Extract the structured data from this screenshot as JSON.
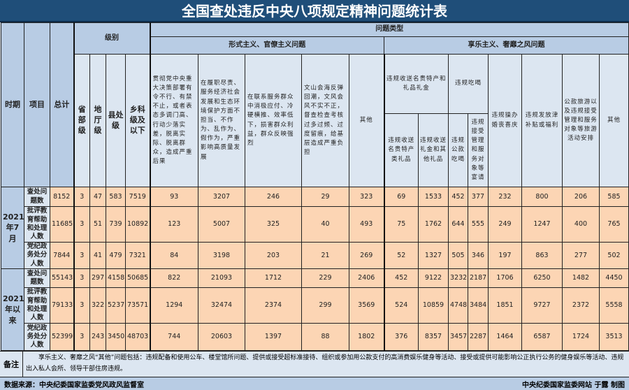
{
  "title": "全国查处违反中央八项规定精神问题统计表",
  "headers": {
    "period": "时期",
    "item": "项目",
    "total": "总计",
    "level": "级别",
    "levels": [
      "省部级",
      "地厅级",
      "县处级",
      "乡科级及以下"
    ],
    "problem_type": "问题类型",
    "formalism": "形式主义、官僚主义问题",
    "formalism_cols": [
      "贯彻党中央重大决策部署有令不行、有禁不止，或者表态多调门高、行动少落实差，脱离实际、脱离群众，造成严重后果",
      "在履职尽责、服务经济社会发展和生态环境保护方面不担当、不作为、乱作为、假作为，严重影响高质量发展",
      "在联系服务群众中消极应付、冷硬横推、效率低下，损害群众利益，群众反映强烈",
      "文山会海反弹回潮，文风会风不实不正，督查检查考核过多过频、过度留痕，给基层造成严重负担",
      "其他"
    ],
    "hedonism": "享乐主义、奢靡之风问题",
    "gift": "违规收送名贵特产和礼品礼金",
    "gift_sub": [
      "违规收送名贵特产类礼品",
      "违规收送礼金和其他礼品"
    ],
    "dining": "违规吃喝",
    "dining_sub": [
      "违规公款吃喝",
      "违规接受管理和服务对象等宴请"
    ],
    "hedonism_cols": [
      "违规操办婚丧喜庆",
      "违规发放津补贴或福利",
      "公款旅游以及违规接受管理和服务对象等旅游活动安排",
      "其他"
    ]
  },
  "groups": [
    {
      "period": "2021年7月",
      "rows": [
        {
          "item": "查处问题数",
          "values": [
            8152,
            3,
            47,
            583,
            7519,
            93,
            3207,
            246,
            29,
            323,
            69,
            1533,
            452,
            377,
            232,
            800,
            206,
            585
          ]
        },
        {
          "item": "批评教育帮助和处理人数",
          "values": [
            11685,
            3,
            51,
            739,
            10892,
            123,
            5007,
            325,
            40,
            493,
            75,
            1762,
            644,
            555,
            249,
            1247,
            400,
            765
          ]
        },
        {
          "item": "党纪政务处分人数",
          "values": [
            7844,
            3,
            41,
            479,
            7321,
            84,
            3198,
            203,
            21,
            269,
            52,
            1327,
            505,
            346,
            197,
            863,
            277,
            502
          ]
        }
      ]
    },
    {
      "period": "2021年以来",
      "rows": [
        {
          "item": "查处问题数",
          "values": [
            55143,
            3,
            297,
            4158,
            50685,
            822,
            21093,
            1712,
            229,
            2406,
            452,
            9122,
            3232,
            2187,
            1706,
            6250,
            1482,
            4450
          ]
        },
        {
          "item": "批评教育帮助和处理人数",
          "values": [
            79133,
            3,
            322,
            5237,
            73571,
            1294,
            32474,
            2374,
            299,
            3569,
            524,
            10859,
            4748,
            3484,
            1851,
            9727,
            2372,
            5558
          ]
        },
        {
          "item": "党纪政务处分人数",
          "values": [
            52399,
            3,
            243,
            3450,
            48703,
            744,
            20603,
            1397,
            88,
            1802,
            376,
            8357,
            3457,
            2287,
            1464,
            6587,
            1724,
            3513
          ]
        }
      ]
    }
  ],
  "note": {
    "label": "备注",
    "text": "享乐主义、奢靡之风“其他”问题包括：违规配备和使用公车、楼堂馆所问题、提供或接受超标准接待、组织或参加用公款支付的高消费娱乐健身等活动、接受或提供可能影响公正执行公务的健身娱乐等活动、违规出入私人会所、领导干部住房违规。"
  },
  "footer": {
    "source": "数据来源：中央纪委国家监委党风政风监督室",
    "credit": "中央纪委国家监委网站 于露 制图"
  }
}
